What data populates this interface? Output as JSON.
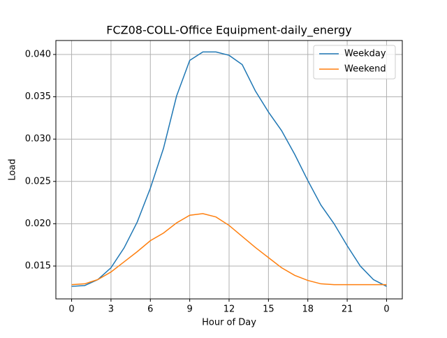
{
  "chart_data": {
    "type": "line",
    "title": "FCZ08-COLL-Office Equipment-daily_energy",
    "xlabel": "Hour of Day",
    "ylabel": "Load",
    "x": [
      0,
      1,
      2,
      3,
      4,
      5,
      6,
      7,
      8,
      9,
      10,
      11,
      12,
      13,
      14,
      15,
      16,
      17,
      18,
      19,
      20,
      21,
      22,
      23,
      24
    ],
    "series": [
      {
        "name": "Weekday",
        "color": "#1f77b4",
        "values": [
          0.0126,
          0.0127,
          0.0134,
          0.0148,
          0.01715,
          0.0202,
          0.0242,
          0.0289,
          0.0351,
          0.0393,
          0.0403,
          0.0403,
          0.0399,
          0.0388,
          0.0357,
          0.0332,
          0.031,
          0.0282,
          0.0251,
          0.0222,
          0.02,
          0.0174,
          0.015,
          0.0134,
          0.0126
        ]
      },
      {
        "name": "Weekend",
        "color": "#ff7f0e",
        "values": [
          0.0128,
          0.0129,
          0.0134,
          0.0143,
          0.0155,
          0.0167,
          0.018,
          0.0189,
          0.0201,
          0.021,
          0.0212,
          0.0208,
          0.0198,
          0.0185,
          0.0172,
          0.016,
          0.0148,
          0.0139,
          0.0133,
          0.0129,
          0.0128,
          0.0128,
          0.0128,
          0.0128,
          0.0128
        ]
      }
    ],
    "xlim": [
      -1.2,
      25.2
    ],
    "xticks": [
      0,
      3,
      6,
      9,
      12,
      15,
      18,
      21,
      {
        "value": 24,
        "label": "0"
      }
    ],
    "ylim": [
      0.01112,
      0.04165
    ],
    "yticks": [
      0.015,
      {
        "value": 0.02,
        "label": "0.020"
      },
      0.025,
      {
        "value": 0.03,
        "label": "0.030"
      },
      0.035,
      {
        "value": 0.04,
        "label": "0.040"
      }
    ],
    "grid": true,
    "legend": "upper-right"
  }
}
